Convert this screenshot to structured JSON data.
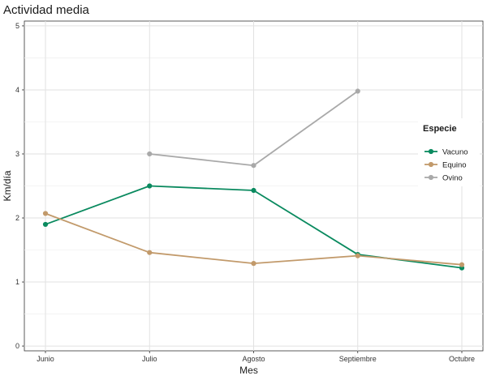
{
  "chart_data": {
    "type": "line",
    "title": "Actividad media",
    "xlabel": "Mes",
    "ylabel": "Km/día",
    "categories": [
      "Junio",
      "Julio",
      "Agosto",
      "Septiembre",
      "Octubre"
    ],
    "ylim": [
      0,
      5
    ],
    "yticks": [
      0,
      1,
      2,
      3,
      4,
      5
    ],
    "grid": true,
    "legend": {
      "title": "Especie",
      "position": "right"
    },
    "series": [
      {
        "name": "Vacuno",
        "color": "#0a8a5f",
        "values": [
          1.9,
          2.5,
          2.43,
          1.43,
          1.22
        ]
      },
      {
        "name": "Equino",
        "color": "#c29a6b",
        "values": [
          2.07,
          1.46,
          1.29,
          1.41,
          1.27
        ]
      },
      {
        "name": "Ovino",
        "color": "#a9a9a9",
        "values": [
          null,
          3.0,
          2.82,
          3.98,
          null
        ]
      }
    ]
  }
}
